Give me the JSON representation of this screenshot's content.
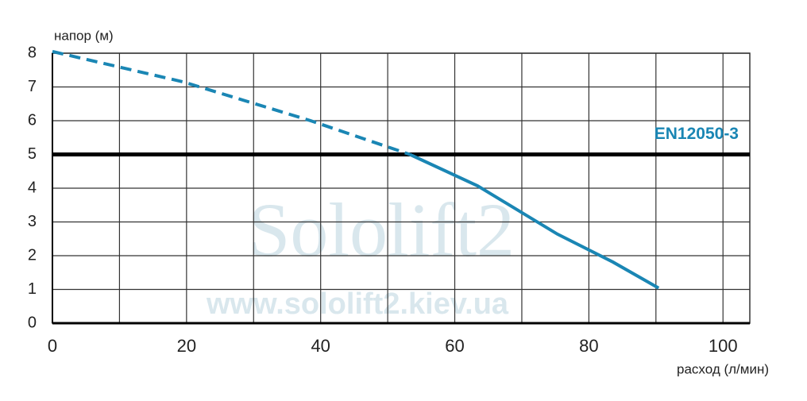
{
  "chart_data": {
    "type": "line",
    "ylabel": "напор (м)",
    "xlabel": "расход (л/мин)",
    "xlim": [
      0,
      104
    ],
    "xticks": [
      0,
      20,
      40,
      60,
      80,
      100
    ],
    "xminorticks": [
      10,
      30,
      50,
      70,
      90
    ],
    "ylim": [
      0,
      8
    ],
    "yticks": [
      0,
      1,
      2,
      3,
      4,
      5,
      6,
      7,
      8
    ],
    "grid": true,
    "series": [
      {
        "color": "#1a86b4",
        "dashed": true,
        "x": [
          0,
          19.5,
          38.5,
          53.3
        ],
        "values": [
          8.05,
          7.15,
          6.0,
          5.0
        ]
      },
      {
        "color": "#1a86b4",
        "dashed": false,
        "x": [
          53.3,
          63.4,
          75.3,
          83.6,
          90.4
        ],
        "values": [
          5.0,
          4.07,
          2.64,
          1.81,
          1.04
        ]
      }
    ],
    "reference_line": {
      "value": 5,
      "label": "EN12050-3",
      "color": "#000000",
      "label_color": "#1a86b4"
    },
    "watermark": {
      "title": "Sololift2",
      "url": "www.sololift2.kiev.ua"
    }
  }
}
